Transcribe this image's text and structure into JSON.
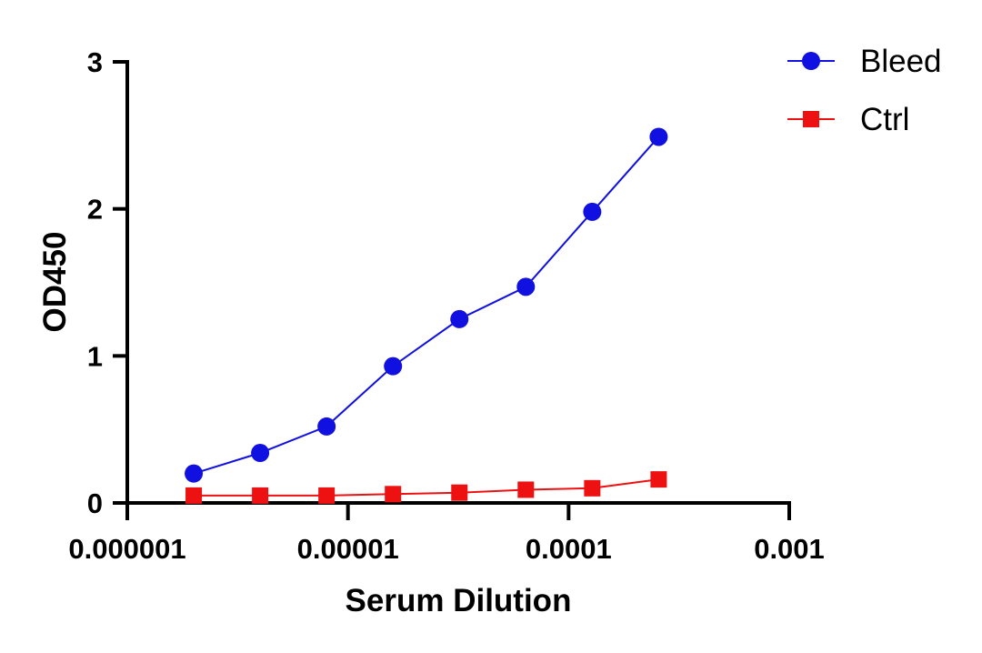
{
  "chart_data": {
    "type": "line",
    "title": "",
    "xlabel": "Serum Dilution",
    "ylabel": "OD450",
    "xscale": "log",
    "xlim": [
      1e-06,
      0.001
    ],
    "ylim": [
      0,
      3
    ],
    "xticks": [
      1e-06,
      1e-05,
      0.0001,
      0.001
    ],
    "xtick_labels": [
      "0.000001",
      "0.00001",
      "0.0001",
      "0.001"
    ],
    "yticks": [
      0,
      1,
      2,
      3
    ],
    "ytick_labels": [
      "0",
      "1",
      "2",
      "3"
    ],
    "grid": false,
    "legend_position": "top-right",
    "x": [
      2e-06,
      4e-06,
      8e-06,
      1.6e-05,
      3.2e-05,
      6.4e-05,
      0.000128,
      0.000256
    ],
    "series": [
      {
        "name": "Bleed",
        "color": "#1010e0",
        "marker": "circle",
        "values": [
          0.2,
          0.34,
          0.52,
          0.93,
          1.25,
          1.47,
          1.98,
          2.49
        ]
      },
      {
        "name": "Ctrl",
        "color": "#ee1111",
        "marker": "square",
        "values": [
          0.05,
          0.05,
          0.05,
          0.06,
          0.07,
          0.09,
          0.1,
          0.16
        ]
      }
    ]
  }
}
